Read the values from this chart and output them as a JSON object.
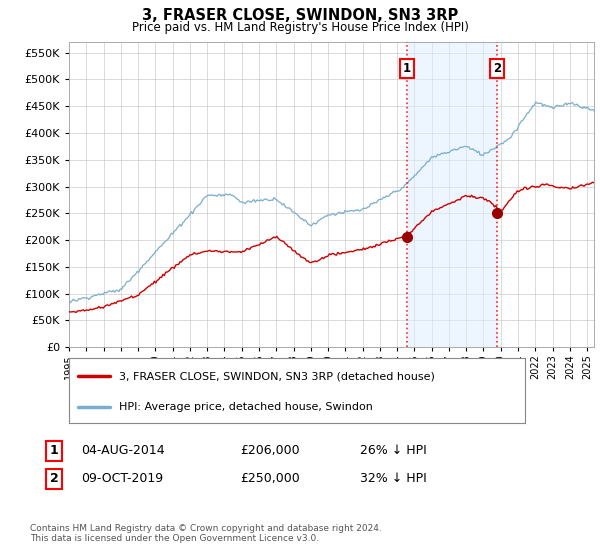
{
  "title": "3, FRASER CLOSE, SWINDON, SN3 3RP",
  "subtitle": "Price paid vs. HM Land Registry's House Price Index (HPI)",
  "ytick_values": [
    0,
    50000,
    100000,
    150000,
    200000,
    250000,
    300000,
    350000,
    400000,
    450000,
    500000,
    550000
  ],
  "ylim": [
    0,
    570000
  ],
  "xlim_start": 1995.0,
  "xlim_end": 2025.4,
  "sale1_x": 2014.58,
  "sale1_y": 206000,
  "sale2_x": 2019.77,
  "sale2_y": 250000,
  "sale1_date": "04-AUG-2014",
  "sale1_price": "£206,000",
  "sale1_hpi": "26% ↓ HPI",
  "sale2_date": "09-OCT-2019",
  "sale2_price": "£250,000",
  "sale2_hpi": "32% ↓ HPI",
  "legend_line1": "3, FRASER CLOSE, SWINDON, SN3 3RP (detached house)",
  "legend_line2": "HPI: Average price, detached house, Swindon",
  "footnote": "Contains HM Land Registry data © Crown copyright and database right 2024.\nThis data is licensed under the Open Government Licence v3.0.",
  "red_color": "#cc0000",
  "blue_color": "#7aadce",
  "shade_color": "#ddeeff",
  "grid_color": "#cccccc"
}
